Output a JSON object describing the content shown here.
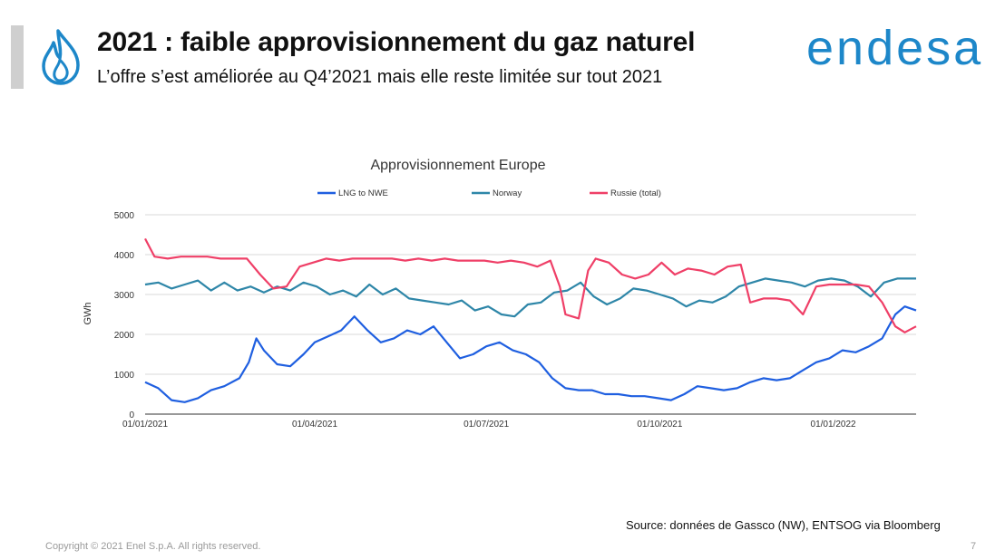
{
  "header": {
    "title": "2021 : faible approvisionnement du gaz naturel",
    "subtitle": "L’offre s’est améliorée au Q4’2021 mais elle reste limitée sur tout 2021",
    "icon": "gas-flame-icon",
    "logo_text": "endesa",
    "accent_color": "#1d87c9",
    "bar_color": "#cfcfcf"
  },
  "chart_data": {
    "type": "line",
    "title": "Approvisionnement Europe",
    "xlabel": "",
    "ylabel": "GWh",
    "ylim": [
      0,
      5000
    ],
    "yticks": [
      0,
      1000,
      2000,
      3000,
      4000,
      5000
    ],
    "xlim": [
      "2021-01-01",
      "2022-02-14"
    ],
    "xtick_labels": [
      "01/01/2021",
      "01/04/2021",
      "01/07/2021",
      "01/10/2021",
      "01/01/2022"
    ],
    "xtick_dates": [
      "2021-01-01",
      "2021-04-01",
      "2021-07-01",
      "2021-10-01",
      "2022-01-01"
    ],
    "grid": true,
    "legend_position": "top",
    "series": [
      {
        "name": "LNG to NWE",
        "color": "#1f5fe0",
        "points": [
          [
            "2021-01-01",
            800
          ],
          [
            "2021-01-08",
            650
          ],
          [
            "2021-01-15",
            350
          ],
          [
            "2021-01-22",
            300
          ],
          [
            "2021-01-29",
            400
          ],
          [
            "2021-02-05",
            600
          ],
          [
            "2021-02-12",
            700
          ],
          [
            "2021-02-20",
            900
          ],
          [
            "2021-02-25",
            1300
          ],
          [
            "2021-03-01",
            1900
          ],
          [
            "2021-03-05",
            1600
          ],
          [
            "2021-03-12",
            1250
          ],
          [
            "2021-03-19",
            1200
          ],
          [
            "2021-03-26",
            1500
          ],
          [
            "2021-04-01",
            1800
          ],
          [
            "2021-04-08",
            1950
          ],
          [
            "2021-04-15",
            2100
          ],
          [
            "2021-04-22",
            2450
          ],
          [
            "2021-04-29",
            2100
          ],
          [
            "2021-05-06",
            1800
          ],
          [
            "2021-05-13",
            1900
          ],
          [
            "2021-05-20",
            2100
          ],
          [
            "2021-05-27",
            2000
          ],
          [
            "2021-06-03",
            2200
          ],
          [
            "2021-06-10",
            1800
          ],
          [
            "2021-06-17",
            1400
          ],
          [
            "2021-06-24",
            1500
          ],
          [
            "2021-07-01",
            1700
          ],
          [
            "2021-07-08",
            1800
          ],
          [
            "2021-07-15",
            1600
          ],
          [
            "2021-07-22",
            1500
          ],
          [
            "2021-07-29",
            1300
          ],
          [
            "2021-08-05",
            900
          ],
          [
            "2021-08-12",
            650
          ],
          [
            "2021-08-19",
            600
          ],
          [
            "2021-08-26",
            600
          ],
          [
            "2021-09-02",
            500
          ],
          [
            "2021-09-09",
            500
          ],
          [
            "2021-09-16",
            450
          ],
          [
            "2021-09-23",
            450
          ],
          [
            "2021-09-30",
            400
          ],
          [
            "2021-10-07",
            350
          ],
          [
            "2021-10-14",
            500
          ],
          [
            "2021-10-21",
            700
          ],
          [
            "2021-10-28",
            650
          ],
          [
            "2021-11-04",
            600
          ],
          [
            "2021-11-11",
            650
          ],
          [
            "2021-11-18",
            800
          ],
          [
            "2021-11-25",
            900
          ],
          [
            "2021-12-02",
            850
          ],
          [
            "2021-12-09",
            900
          ],
          [
            "2021-12-16",
            1100
          ],
          [
            "2021-12-23",
            1300
          ],
          [
            "2021-12-30",
            1400
          ],
          [
            "2022-01-06",
            1600
          ],
          [
            "2022-01-13",
            1550
          ],
          [
            "2022-01-20",
            1700
          ],
          [
            "2022-01-27",
            1900
          ],
          [
            "2022-02-03",
            2500
          ],
          [
            "2022-02-08",
            2700
          ],
          [
            "2022-02-14",
            2600
          ]
        ]
      },
      {
        "name": "Norway",
        "color": "#2e86a8",
        "points": [
          [
            "2021-01-01",
            3250
          ],
          [
            "2021-01-08",
            3300
          ],
          [
            "2021-01-15",
            3150
          ],
          [
            "2021-01-22",
            3250
          ],
          [
            "2021-01-29",
            3350
          ],
          [
            "2021-02-05",
            3100
          ],
          [
            "2021-02-12",
            3300
          ],
          [
            "2021-02-19",
            3100
          ],
          [
            "2021-02-26",
            3200
          ],
          [
            "2021-03-05",
            3050
          ],
          [
            "2021-03-12",
            3200
          ],
          [
            "2021-03-19",
            3100
          ],
          [
            "2021-03-26",
            3300
          ],
          [
            "2021-04-02",
            3200
          ],
          [
            "2021-04-09",
            3000
          ],
          [
            "2021-04-16",
            3100
          ],
          [
            "2021-04-23",
            2950
          ],
          [
            "2021-04-30",
            3250
          ],
          [
            "2021-05-07",
            3000
          ],
          [
            "2021-05-14",
            3150
          ],
          [
            "2021-05-21",
            2900
          ],
          [
            "2021-05-28",
            2850
          ],
          [
            "2021-06-04",
            2800
          ],
          [
            "2021-06-11",
            2750
          ],
          [
            "2021-06-18",
            2850
          ],
          [
            "2021-06-25",
            2600
          ],
          [
            "2021-07-02",
            2700
          ],
          [
            "2021-07-09",
            2500
          ],
          [
            "2021-07-16",
            2450
          ],
          [
            "2021-07-23",
            2750
          ],
          [
            "2021-07-30",
            2800
          ],
          [
            "2021-08-06",
            3050
          ],
          [
            "2021-08-13",
            3100
          ],
          [
            "2021-08-20",
            3300
          ],
          [
            "2021-08-27",
            2950
          ],
          [
            "2021-09-03",
            2750
          ],
          [
            "2021-09-10",
            2900
          ],
          [
            "2021-09-17",
            3150
          ],
          [
            "2021-09-24",
            3100
          ],
          [
            "2021-10-01",
            3000
          ],
          [
            "2021-10-08",
            2900
          ],
          [
            "2021-10-15",
            2700
          ],
          [
            "2021-10-22",
            2850
          ],
          [
            "2021-10-29",
            2800
          ],
          [
            "2021-11-05",
            2950
          ],
          [
            "2021-11-12",
            3200
          ],
          [
            "2021-11-19",
            3300
          ],
          [
            "2021-11-26",
            3400
          ],
          [
            "2021-12-03",
            3350
          ],
          [
            "2021-12-10",
            3300
          ],
          [
            "2021-12-17",
            3200
          ],
          [
            "2021-12-24",
            3350
          ],
          [
            "2021-12-31",
            3400
          ],
          [
            "2022-01-07",
            3350
          ],
          [
            "2022-01-14",
            3200
          ],
          [
            "2022-01-21",
            2950
          ],
          [
            "2022-01-28",
            3300
          ],
          [
            "2022-02-04",
            3400
          ],
          [
            "2022-02-14",
            3400
          ]
        ]
      },
      {
        "name": "Russie (total)",
        "color": "#ef3f67",
        "points": [
          [
            "2021-01-01",
            4400
          ],
          [
            "2021-01-06",
            3950
          ],
          [
            "2021-01-13",
            3900
          ],
          [
            "2021-01-20",
            3950
          ],
          [
            "2021-01-27",
            3950
          ],
          [
            "2021-02-03",
            3950
          ],
          [
            "2021-02-10",
            3900
          ],
          [
            "2021-02-17",
            3900
          ],
          [
            "2021-02-24",
            3900
          ],
          [
            "2021-03-03",
            3500
          ],
          [
            "2021-03-10",
            3150
          ],
          [
            "2021-03-17",
            3200
          ],
          [
            "2021-03-24",
            3700
          ],
          [
            "2021-03-31",
            3800
          ],
          [
            "2021-04-07",
            3900
          ],
          [
            "2021-04-14",
            3850
          ],
          [
            "2021-04-21",
            3900
          ],
          [
            "2021-04-28",
            3900
          ],
          [
            "2021-05-05",
            3900
          ],
          [
            "2021-05-12",
            3900
          ],
          [
            "2021-05-19",
            3850
          ],
          [
            "2021-05-26",
            3900
          ],
          [
            "2021-06-02",
            3850
          ],
          [
            "2021-06-09",
            3900
          ],
          [
            "2021-06-16",
            3850
          ],
          [
            "2021-06-23",
            3850
          ],
          [
            "2021-06-30",
            3850
          ],
          [
            "2021-07-07",
            3800
          ],
          [
            "2021-07-14",
            3850
          ],
          [
            "2021-07-21",
            3800
          ],
          [
            "2021-07-28",
            3700
          ],
          [
            "2021-08-04",
            3850
          ],
          [
            "2021-08-09",
            3200
          ],
          [
            "2021-08-12",
            2500
          ],
          [
            "2021-08-19",
            2400
          ],
          [
            "2021-08-24",
            3600
          ],
          [
            "2021-08-28",
            3900
          ],
          [
            "2021-09-04",
            3800
          ],
          [
            "2021-09-11",
            3500
          ],
          [
            "2021-09-18",
            3400
          ],
          [
            "2021-09-25",
            3500
          ],
          [
            "2021-10-02",
            3800
          ],
          [
            "2021-10-09",
            3500
          ],
          [
            "2021-10-16",
            3650
          ],
          [
            "2021-10-23",
            3600
          ],
          [
            "2021-10-30",
            3500
          ],
          [
            "2021-11-06",
            3700
          ],
          [
            "2021-11-13",
            3750
          ],
          [
            "2021-11-18",
            2800
          ],
          [
            "2021-11-25",
            2900
          ],
          [
            "2021-12-02",
            2900
          ],
          [
            "2021-12-09",
            2850
          ],
          [
            "2021-12-16",
            2500
          ],
          [
            "2021-12-23",
            3200
          ],
          [
            "2021-12-30",
            3250
          ],
          [
            "2022-01-06",
            3250
          ],
          [
            "2022-01-13",
            3250
          ],
          [
            "2022-01-20",
            3200
          ],
          [
            "2022-01-27",
            2800
          ],
          [
            "2022-02-03",
            2200
          ],
          [
            "2022-02-08",
            2050
          ],
          [
            "2022-02-14",
            2200
          ]
        ]
      }
    ]
  },
  "footer": {
    "source": "Source: données de Gassco (NW), ENTSOG via Bloomberg",
    "copyright": "Copyright © 2021 Enel S.p.A. All rights reserved.",
    "page_number": "7"
  }
}
